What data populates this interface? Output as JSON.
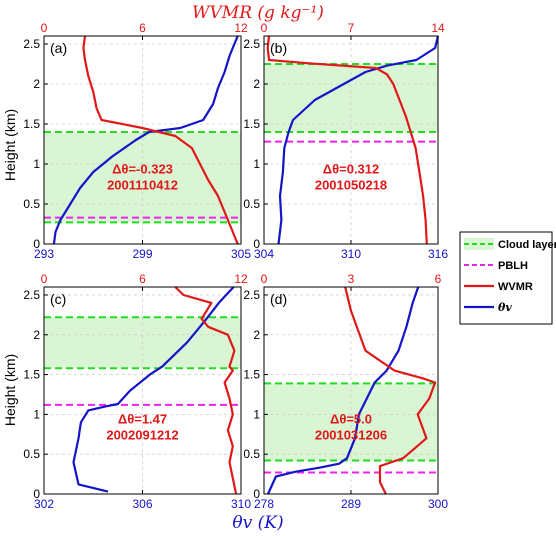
{
  "figure": {
    "top_title": "WVMR (g kg⁻¹)",
    "bottom_title": "θv (K)",
    "ylabel": "Height (km)"
  },
  "legend": {
    "items": [
      {
        "label": "Cloud layer",
        "kind": "cloud"
      },
      {
        "label": "PBLH",
        "kind": "pblh"
      },
      {
        "label": "WVMR",
        "kind": "wvmr"
      },
      {
        "label": "θv",
        "kind": "theta"
      }
    ]
  },
  "colors": {
    "theta": "#1414c8",
    "wvmr": "#e01818",
    "cloud_fill": "#d9f5d3",
    "cloud_line": "#22dd22",
    "pblh": "#ee22ee",
    "axis_red": "#e01818",
    "axis_blue": "#1414c8",
    "annotation": "#e01818"
  },
  "chart_data": [
    {
      "type": "line",
      "panel_label": "(a)",
      "xlim_bottom": [
        293,
        305
      ],
      "xticks_bottom": [
        "293",
        "299",
        "305"
      ],
      "xlim_top": [
        0,
        12
      ],
      "xticks_top": [
        "0",
        "6",
        "12"
      ],
      "ylim": [
        0,
        2.6
      ],
      "yticks": [
        "0",
        "0.5",
        "1",
        "1.5",
        "2",
        "2.5"
      ],
      "cloud_layer": [
        0.27,
        1.4
      ],
      "pblh": 0.33,
      "annotation": [
        "Δθ=-0.323",
        "2001110412"
      ],
      "series": [
        {
          "name": "θv",
          "axis": "bottom",
          "x": [
            293.6,
            293.7,
            294.0,
            294.6,
            295.2,
            296.0,
            297.2,
            298.6,
            299.4,
            301.3,
            302.7,
            303.3,
            303.6,
            304.0,
            304.3,
            304.6,
            304.8
          ],
          "y": [
            0.0,
            0.15,
            0.3,
            0.5,
            0.7,
            0.9,
            1.1,
            1.3,
            1.4,
            1.45,
            1.55,
            1.75,
            1.95,
            2.15,
            2.35,
            2.5,
            2.6
          ]
        },
        {
          "name": "WVMR",
          "axis": "top",
          "x": [
            11.8,
            11.6,
            11.4,
            11.0,
            10.6,
            10.0,
            9.5,
            9.0,
            8.0,
            6.0,
            3.5,
            3.2,
            3.0,
            2.7,
            2.5,
            2.4,
            2.5
          ],
          "y": [
            0.0,
            0.1,
            0.2,
            0.4,
            0.6,
            0.8,
            1.0,
            1.2,
            1.35,
            1.45,
            1.55,
            1.7,
            1.9,
            2.1,
            2.3,
            2.45,
            2.6
          ]
        }
      ]
    },
    {
      "type": "line",
      "panel_label": "(b)",
      "xlim_bottom": [
        304,
        316
      ],
      "xticks_bottom": [
        "304",
        "310",
        "316"
      ],
      "xlim_top": [
        0,
        14
      ],
      "xticks_top": [
        "0",
        "7",
        "14"
      ],
      "ylim": [
        0,
        2.6
      ],
      "yticks": [
        "0",
        "0.5",
        "1",
        "1.5",
        "2",
        "2.5"
      ],
      "cloud_layer": [
        1.4,
        2.25
      ],
      "pblh": 1.28,
      "annotation": [
        "Δθ=0.312",
        "2001050218"
      ],
      "series": [
        {
          "name": "θv",
          "axis": "bottom",
          "x": [
            305.0,
            305.2,
            305.1,
            305.3,
            305.4,
            305.7,
            306.0,
            307.5,
            309.0,
            310.0,
            311.0,
            312.5,
            314.5,
            315.8,
            316.0
          ],
          "y": [
            0.0,
            0.3,
            0.6,
            0.9,
            1.2,
            1.4,
            1.55,
            1.8,
            1.95,
            2.05,
            2.15,
            2.23,
            2.3,
            2.45,
            2.6
          ]
        },
        {
          "name": "WVMR",
          "axis": "top",
          "x": [
            13.1,
            13.0,
            12.8,
            12.5,
            12.2,
            11.8,
            11.4,
            10.9,
            10.4,
            9.9,
            9.0,
            3.5,
            0.4,
            0.3,
            0.4
          ],
          "y": [
            0.0,
            0.3,
            0.6,
            0.9,
            1.2,
            1.4,
            1.6,
            1.8,
            2.0,
            2.12,
            2.2,
            2.26,
            2.3,
            2.45,
            2.6
          ]
        }
      ]
    },
    {
      "type": "line",
      "panel_label": "(c)",
      "xlim_bottom": [
        302,
        310
      ],
      "xticks_bottom": [
        "302",
        "306",
        "310"
      ],
      "xlim_top": [
        0,
        12
      ],
      "xticks_top": [
        "0",
        "6",
        "12"
      ],
      "ylim": [
        0,
        2.6
      ],
      "yticks": [
        "0",
        "0.5",
        "1",
        "1.5",
        "2",
        "2.5"
      ],
      "cloud_layer": [
        1.58,
        2.22
      ],
      "pblh": 1.12,
      "annotation": [
        "Δθ=1.47",
        "2002091212"
      ],
      "series": [
        {
          "name": "θv",
          "axis": "bottom",
          "x": [
            304.6,
            303.4,
            303.2,
            303.4,
            303.5,
            303.8,
            304.5,
            305.0,
            305.5,
            306.3,
            306.8,
            307.8,
            308.2,
            308.6,
            309.1,
            309.7
          ],
          "y": [
            0.03,
            0.12,
            0.4,
            0.7,
            0.9,
            1.05,
            1.1,
            1.13,
            1.3,
            1.5,
            1.6,
            1.9,
            2.05,
            2.2,
            2.4,
            2.6
          ]
        },
        {
          "name": "WVMR",
          "axis": "top",
          "x": [
            11.7,
            11.5,
            11.3,
            11.5,
            11.2,
            11.5,
            11.3,
            11.0,
            11.5,
            11.3,
            11.6,
            11.2,
            10.0,
            9.6,
            9.9,
            10.2,
            8.5,
            8.0
          ],
          "y": [
            0.0,
            0.2,
            0.4,
            0.6,
            0.8,
            1.0,
            1.2,
            1.4,
            1.55,
            1.6,
            1.8,
            2.0,
            2.1,
            2.2,
            2.3,
            2.4,
            2.5,
            2.6
          ]
        }
      ]
    },
    {
      "type": "line",
      "panel_label": "(d)",
      "xlim_bottom": [
        278,
        300
      ],
      "xticks_bottom": [
        "278",
        "289",
        "300"
      ],
      "xlim_top": [
        0,
        6
      ],
      "xticks_top": [
        "0",
        "3",
        "6"
      ],
      "ylim": [
        0,
        2.6
      ],
      "yticks": [
        "0",
        "0.5",
        "1",
        "1.5",
        "2",
        "2.5"
      ],
      "cloud_layer": [
        0.42,
        1.39
      ],
      "pblh": 0.27,
      "annotation": [
        "Δθ=5.0",
        "2001031206"
      ],
      "series": [
        {
          "name": "θv",
          "axis": "bottom",
          "x": [
            278.5,
            279.5,
            282.0,
            285.0,
            287.5,
            288.5,
            289.5,
            290.0,
            291.0,
            292.0,
            293.5,
            295.0,
            296.0,
            296.8,
            297.5
          ],
          "y": [
            0.0,
            0.22,
            0.28,
            0.33,
            0.38,
            0.45,
            0.7,
            1.0,
            1.2,
            1.4,
            1.55,
            1.8,
            2.1,
            2.4,
            2.6
          ]
        },
        {
          "name": "WVMR",
          "axis": "top",
          "x": [
            4.2,
            4.0,
            4.0,
            4.8,
            5.6,
            5.3,
            5.7,
            5.9,
            5.5,
            4.5,
            3.5,
            3.3,
            3.0,
            2.8
          ],
          "y": [
            0.0,
            0.15,
            0.35,
            0.45,
            0.7,
            1.0,
            1.2,
            1.4,
            1.45,
            1.55,
            1.8,
            2.0,
            2.3,
            2.6
          ]
        }
      ]
    }
  ]
}
